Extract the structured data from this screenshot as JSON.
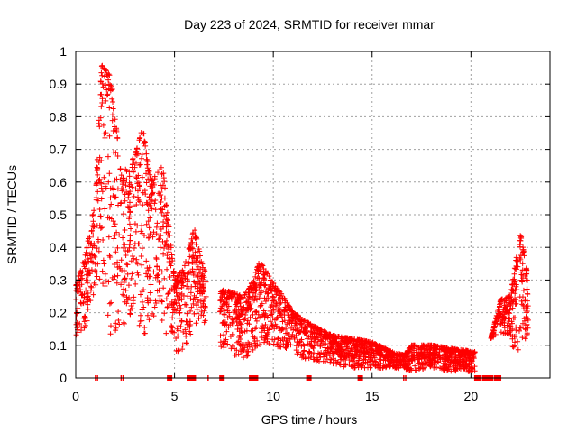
{
  "chart_data": {
    "type": "scatter",
    "title": "Day 223 of 2024, SRMTID for receiver mmar",
    "xlabel": "GPS time / hours",
    "ylabel": "SRMTID / TECUs",
    "xlim": [
      0,
      24
    ],
    "ylim": [
      0,
      1
    ],
    "x_ticks": [
      0,
      5,
      10,
      15,
      20
    ],
    "x_tick_labels": [
      "0",
      "5",
      "10",
      "15",
      "20"
    ],
    "y_ticks": [
      0,
      0.1,
      0.2,
      0.3,
      0.4,
      0.5,
      0.6,
      0.7,
      0.8,
      0.9,
      1
    ],
    "y_tick_labels": [
      "0",
      "0.1",
      "0.2",
      "0.3",
      "0.4",
      "0.5",
      "0.6",
      "0.7",
      "0.8",
      "0.9",
      "1"
    ],
    "grid": true,
    "marker": "plus",
    "series_color": "#ff0000",
    "envelope": {
      "description": "approximate SRMTID envelope over time (hours, TECU)",
      "x": [
        0.0,
        0.5,
        1.0,
        1.3,
        1.8,
        2.3,
        3.0,
        3.4,
        3.8,
        4.4,
        5.0,
        5.5,
        6.0,
        6.4,
        7.0,
        7.5,
        8.5,
        9.0,
        9.3,
        10.0,
        10.5,
        11.0,
        12.0,
        13.0,
        14.0,
        15.0,
        16.0,
        16.6,
        17.0,
        18.0,
        19.0,
        20.2,
        21.0,
        21.5,
        22.0,
        22.5,
        22.9
      ],
      "upper": [
        0.28,
        0.38,
        0.55,
        0.96,
        0.92,
        0.62,
        0.68,
        0.77,
        0.6,
        0.65,
        0.3,
        0.34,
        0.46,
        0.35,
        0.25,
        0.27,
        0.25,
        0.3,
        0.36,
        0.29,
        0.25,
        0.2,
        0.16,
        0.13,
        0.12,
        0.11,
        0.08,
        0.07,
        0.1,
        0.1,
        0.09,
        0.08,
        0.12,
        0.24,
        0.25,
        0.45,
        0.3
      ],
      "lower": [
        0.13,
        0.15,
        0.28,
        0.3,
        0.1,
        0.15,
        0.2,
        0.12,
        0.18,
        0.15,
        0.08,
        0.08,
        0.15,
        0.18,
        0.12,
        0.08,
        0.06,
        0.08,
        0.1,
        0.1,
        0.09,
        0.07,
        0.05,
        0.04,
        0.03,
        0.03,
        0.03,
        0.03,
        0.02,
        0.03,
        0.02,
        0.02,
        0.12,
        0.13,
        0.1,
        0.08,
        0.14
      ]
    },
    "zero_markers": {
      "solid_x": [
        4.75,
        5.75,
        5.85,
        5.95,
        7.4,
        8.9,
        9.1,
        11.8,
        14.4,
        20.3,
        20.4,
        20.7,
        20.8,
        20.9,
        21.0,
        21.3,
        21.4
      ],
      "plus_x": [
        1.0,
        1.1,
        2.3,
        2.4,
        6.7,
        16.6,
        16.7
      ]
    },
    "data_windows": [
      [
        0.0,
        6.6
      ],
      [
        7.3,
        20.2
      ],
      [
        21.0,
        22.9
      ]
    ]
  }
}
